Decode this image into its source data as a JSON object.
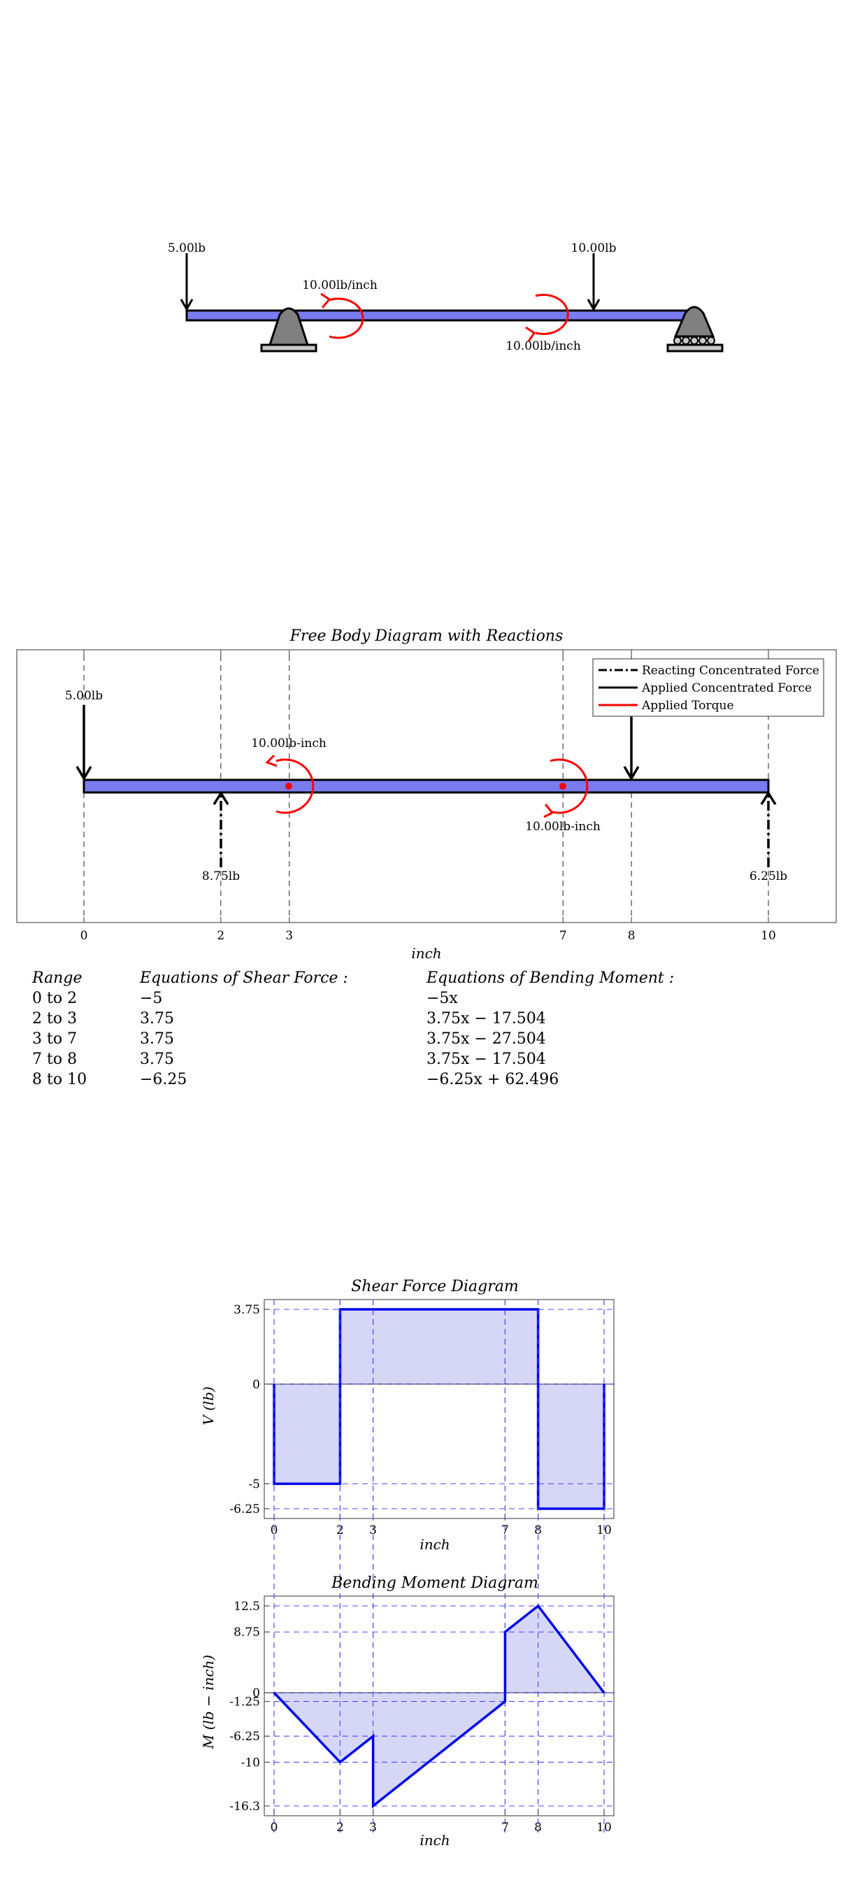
{
  "beam_sketch": {
    "loads": [
      {
        "label": "5.00lb",
        "x": 0,
        "kind": "force-down"
      },
      {
        "label": "10.00lb",
        "x": 8,
        "kind": "force-down"
      },
      {
        "label": "10.00lb/inch",
        "x": 3,
        "kind": "torque-ccw"
      },
      {
        "label": "10.00lb/inch",
        "x": 7,
        "kind": "torque-cw"
      }
    ],
    "supports": [
      {
        "x": 2,
        "type": "pin"
      },
      {
        "x": 10,
        "type": "roller"
      }
    ],
    "length": 10
  },
  "fbd": {
    "title": "Free Body Diagram with Reactions",
    "xlabel": "inch",
    "ticks": [
      "0",
      "2",
      "3",
      "7",
      "8",
      "10"
    ],
    "tick_values": [
      0,
      2,
      3,
      7,
      8,
      10
    ],
    "legend": [
      {
        "label": "Reacting Concentrated Force",
        "style": "dashdot",
        "color": "#000000"
      },
      {
        "label": "Applied Concentrated Force",
        "style": "solid",
        "color": "#000000"
      },
      {
        "label": "Applied Torque",
        "style": "solid",
        "color": "#ff0000"
      }
    ],
    "applied_force_label": "5.00lb",
    "torque_labels": [
      "10.00lb-inch",
      "10.00lb-inch"
    ],
    "reaction_labels": [
      "8.75lb",
      "6.25lb"
    ],
    "beam_color": "#7b7bf0"
  },
  "equations": {
    "headers": [
      "Range",
      "Equations of Shear Force :",
      "Equations of Bending Moment :"
    ],
    "rows": [
      {
        "range": "0 to 2",
        "shear": "−5",
        "moment": "−5x"
      },
      {
        "range": "2 to 3",
        "shear": "3.75",
        "moment": "3.75x − 17.504"
      },
      {
        "range": "3 to 7",
        "shear": "3.75",
        "moment": "3.75x − 27.504"
      },
      {
        "range": "7 to 8",
        "shear": "3.75",
        "moment": "3.75x − 17.504"
      },
      {
        "range": "8 to 10",
        "shear": "−6.25",
        "moment": "−6.25x + 62.496"
      }
    ]
  },
  "chart_data": [
    {
      "type": "line",
      "title": "Shear Force Diagram",
      "xlabel": "inch",
      "ylabel": "V (lb)",
      "xlim": [
        0,
        10
      ],
      "ylim": [
        -6.25,
        3.75
      ],
      "xticks": [
        "0",
        "2",
        "3",
        "7",
        "8",
        "10"
      ],
      "yticks": [
        "3.75",
        "0",
        "-5",
        "-6.25"
      ],
      "x": [
        0,
        0,
        2,
        2,
        3,
        7,
        8,
        8,
        10,
        10
      ],
      "y": [
        0,
        -5,
        -5,
        3.75,
        3.75,
        3.75,
        3.75,
        -6.25,
        -6.25,
        0
      ],
      "color": "#0000ee",
      "fill": "#d6d6f7",
      "grid": "dashed-blue"
    },
    {
      "type": "line",
      "title": "Bending Moment Diagram",
      "xlabel": "inch",
      "ylabel": "M (lb − inch)",
      "xlim": [
        0,
        10
      ],
      "ylim": [
        -16.3,
        12.5
      ],
      "xticks": [
        "0",
        "2",
        "3",
        "7",
        "8",
        "10"
      ],
      "yticks": [
        "12.5",
        "8.75",
        "0",
        "-1.25",
        "-6.25",
        "-10",
        "-16.3"
      ],
      "x": [
        0,
        2,
        3,
        3,
        7,
        7,
        8,
        10
      ],
      "y": [
        0,
        -10,
        -6.25,
        -16.3,
        -1.25,
        8.75,
        12.5,
        0
      ],
      "color": "#0000ee",
      "fill": "#d6d6f7",
      "grid": "dashed-blue"
    }
  ]
}
